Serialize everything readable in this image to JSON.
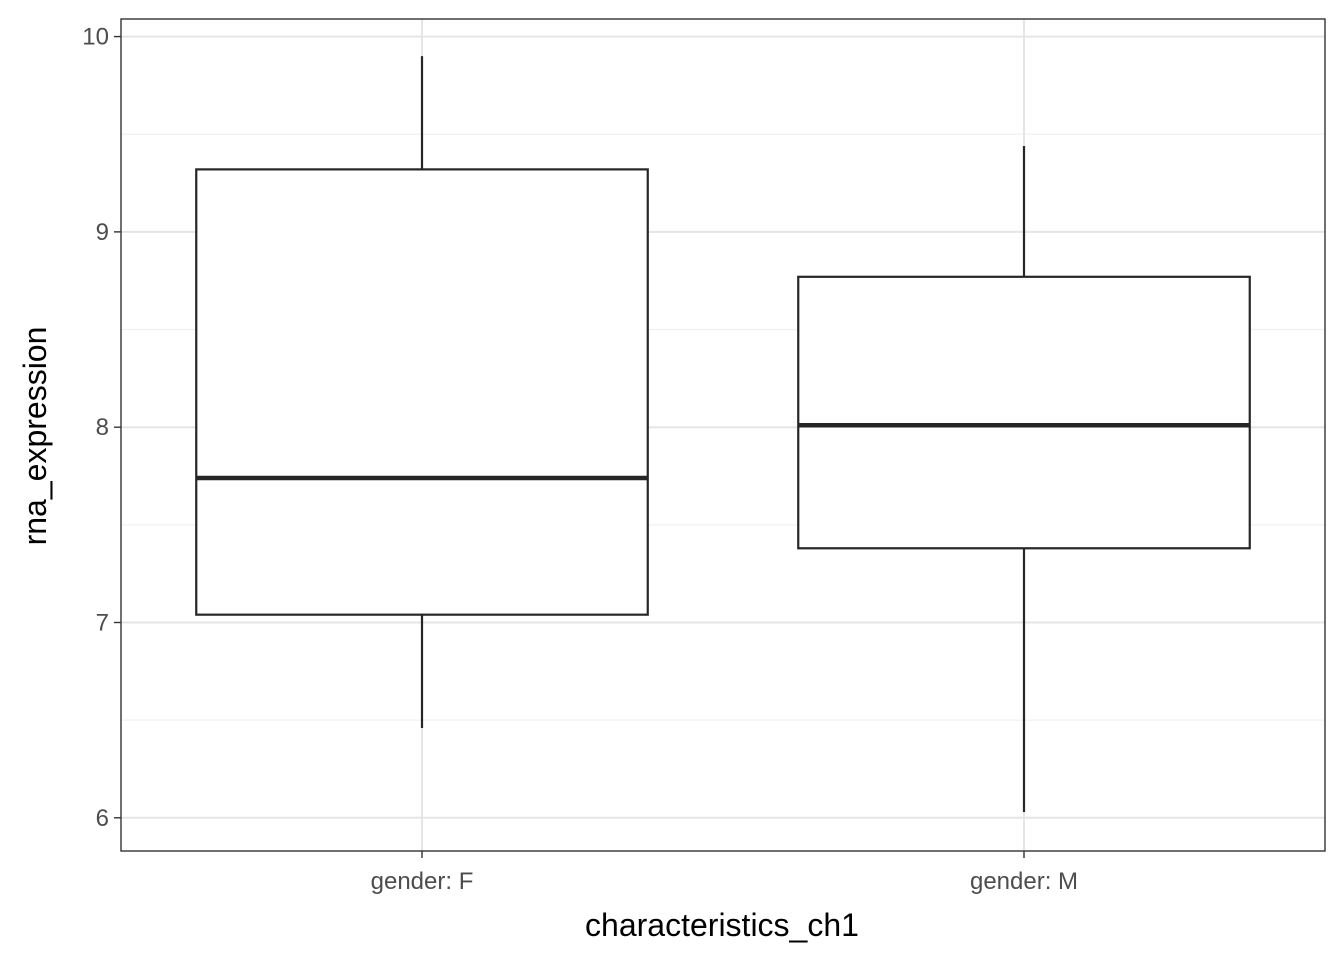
{
  "chart_data": {
    "type": "boxplot",
    "title": "",
    "xlabel": "characteristics_ch1",
    "ylabel": "rna_expression",
    "categories": [
      "gender: F",
      "gender: M"
    ],
    "boxes": [
      {
        "category": "gender: F",
        "whisker_low": 6.46,
        "q1": 7.04,
        "median": 7.74,
        "q3": 9.32,
        "whisker_high": 9.9
      },
      {
        "category": "gender: M",
        "whisker_low": 6.03,
        "q1": 7.38,
        "median": 8.01,
        "q3": 8.77,
        "whisker_high": 9.44
      }
    ],
    "ylim": [
      5.83,
      10.09
    ],
    "yticks": [
      6,
      7,
      8,
      9,
      10
    ],
    "ytick_labels": [
      "6",
      "7",
      "8",
      "9",
      "10"
    ],
    "grid": true,
    "theme": "bw",
    "colors": {
      "panel_border": "#333333",
      "grid_major": "#e5e5e5",
      "grid_minor": "#f0f0f0",
      "box_stroke": "#262626",
      "box_fill": "#ffffff",
      "tick_text": "#4d4d4d",
      "axis_title": "#000000"
    }
  }
}
